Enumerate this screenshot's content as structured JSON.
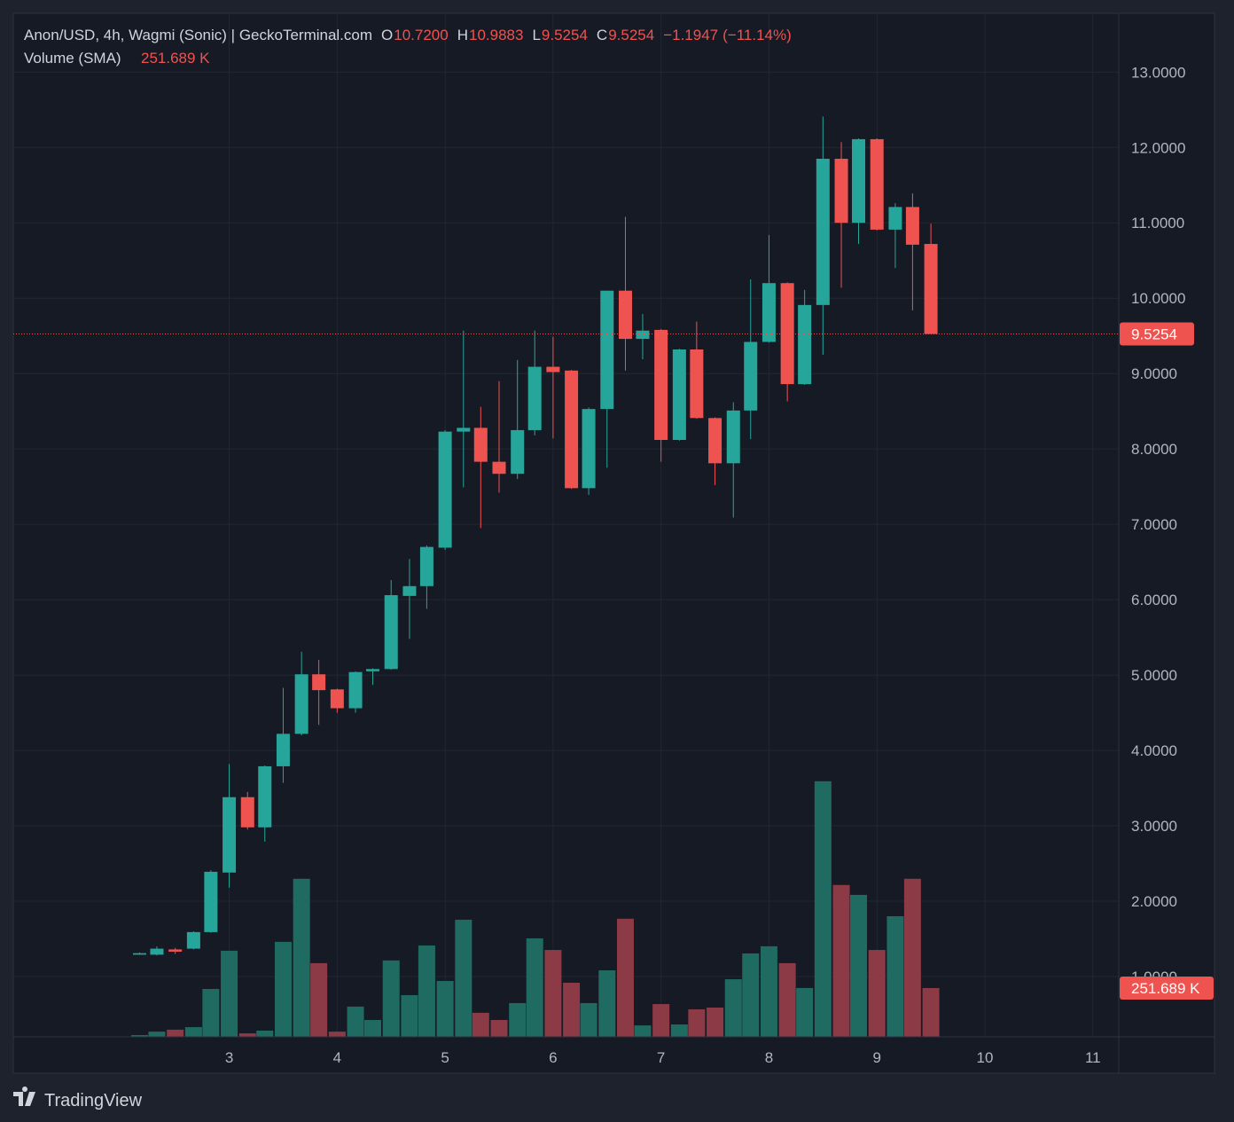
{
  "chart_data": {
    "type": "candlestick",
    "title": "Anon/USD, 4h, Wagmi (Sonic) | GeckoTerminal.com",
    "ohlc_legend": {
      "labels": [
        "O",
        "H",
        "L",
        "C"
      ],
      "values": [
        10.72,
        10.9883,
        9.5254,
        9.5254
      ],
      "value_labels": [
        "10.7200",
        "10.9883",
        "9.5254",
        "9.5254"
      ]
    },
    "change": {
      "value": -1.1947,
      "label": "−1.1947",
      "percent": -11.14,
      "percent_label": "(−11.14%)"
    },
    "volume_title": "Volume (SMA)",
    "current_volume": {
      "value": 251689,
      "label": "251.689 K"
    },
    "brand": "TradingView",
    "up_color": "#26a69a",
    "down_color": "#ef5350",
    "volume_up_color": "#1f6b62",
    "volume_down_color": "#8c3a45",
    "grid": true,
    "x": [
      2.17,
      2.33,
      2.5,
      2.67,
      2.83,
      3,
      3.17,
      3.33,
      3.5,
      3.67,
      3.83,
      4,
      4.17,
      4.33,
      4.5,
      4.67,
      4.83,
      5,
      5.17,
      5.33,
      5.5,
      5.67,
      5.83,
      6,
      6.17,
      6.33,
      6.5,
      6.67,
      6.83,
      7,
      7.17,
      7.33,
      7.5,
      7.67,
      7.83,
      8,
      8.17,
      8.33,
      8.5,
      8.67,
      8.83,
      9,
      9.17,
      9.33,
      9.5
    ],
    "open": [
      1.29,
      1.29,
      1.36,
      1.37,
      1.59,
      2.38,
      3.38,
      2.98,
      3.79,
      4.22,
      5.01,
      4.81,
      4.56,
      5.05,
      5.08,
      6.05,
      6.18,
      6.69,
      8.23,
      8.28,
      7.83,
      7.67,
      8.25,
      9.09,
      9.04,
      7.48,
      8.53,
      10.1,
      9.46,
      9.58,
      8.12,
      9.32,
      8.41,
      7.81,
      8.51,
      9.42,
      10.2,
      8.86,
      9.91,
      11.85,
      11.0,
      12.11,
      10.91,
      11.21,
      10.72
    ],
    "high": [
      1.32,
      1.4,
      1.38,
      1.6,
      2.41,
      3.82,
      3.45,
      3.8,
      4.83,
      5.31,
      5.2,
      4.82,
      5.05,
      5.09,
      6.26,
      6.54,
      6.72,
      8.25,
      9.57,
      8.56,
      8.9,
      9.18,
      9.57,
      9.49,
      9.05,
      8.55,
      10.1,
      11.08,
      9.79,
      9.59,
      9.33,
      9.69,
      8.42,
      8.62,
      10.25,
      10.84,
      10.21,
      10.11,
      12.41,
      12.07,
      12.12,
      12.12,
      11.26,
      11.39,
      10.9883
    ],
    "low": [
      1.29,
      1.28,
      1.3,
      1.36,
      1.58,
      2.18,
      2.95,
      2.79,
      3.57,
      4.2,
      4.34,
      4.5,
      4.5,
      4.87,
      5.07,
      5.48,
      5.88,
      6.66,
      7.49,
      6.95,
      7.42,
      7.6,
      8.18,
      8.14,
      7.47,
      7.39,
      7.75,
      9.04,
      9.19,
      7.83,
      8.11,
      8.4,
      7.52,
      7.09,
      8.13,
      9.41,
      8.63,
      8.85,
      9.25,
      10.14,
      10.72,
      10.9,
      10.4,
      9.84,
      9.5254
    ],
    "close": [
      1.31,
      1.37,
      1.33,
      1.59,
      2.39,
      3.38,
      2.98,
      3.79,
      4.22,
      5.01,
      4.8,
      4.56,
      5.04,
      5.08,
      6.06,
      6.18,
      6.7,
      8.23,
      8.28,
      7.83,
      7.67,
      8.25,
      9.09,
      9.02,
      7.48,
      8.53,
      10.1,
      9.46,
      9.57,
      8.12,
      9.32,
      8.41,
      7.81,
      8.51,
      9.42,
      10.2,
      8.86,
      9.91,
      11.85,
      11.0,
      12.11,
      10.91,
      11.21,
      10.71,
      9.5254
    ],
    "volume": [
      9000,
      27000,
      37000,
      50000,
      247000,
      444000,
      18000,
      32000,
      490000,
      815000,
      380000,
      27000,
      156000,
      87000,
      394000,
      215000,
      471000,
      288000,
      604000,
      124000,
      87000,
      174000,
      508000,
      448000,
      279000,
      174000,
      343000,
      609000,
      59000,
      169000,
      64000,
      142000,
      151000,
      297000,
      430000,
      467000,
      380000,
      252000,
      1318000,
      783000,
      732000,
      448000,
      622000,
      815000,
      251689
    ],
    "xlim": [
      1,
      11.24
    ],
    "xticks": [
      3,
      4,
      5,
      6,
      7,
      8,
      9,
      10,
      11
    ],
    "ylim": [
      0.2,
      13.78
    ],
    "yticks": [
      {
        "value": 1,
        "label": "1.0000"
      },
      {
        "value": 2,
        "label": "2.0000"
      },
      {
        "value": 3,
        "label": "3.0000"
      },
      {
        "value": 4,
        "label": "4.0000"
      },
      {
        "value": 5,
        "label": "5.0000"
      },
      {
        "value": 6,
        "label": "6.0000"
      },
      {
        "value": 7,
        "label": "7.0000"
      },
      {
        "value": 8,
        "label": "8.0000"
      },
      {
        "value": 9,
        "label": "9.0000"
      },
      {
        "value": 10,
        "label": "10.0000"
      },
      {
        "value": 11,
        "label": "11.0000"
      },
      {
        "value": 12,
        "label": "12.0000"
      },
      {
        "value": 13,
        "label": "13.0000"
      }
    ],
    "volume_ylim": [
      0,
      1500000
    ]
  }
}
